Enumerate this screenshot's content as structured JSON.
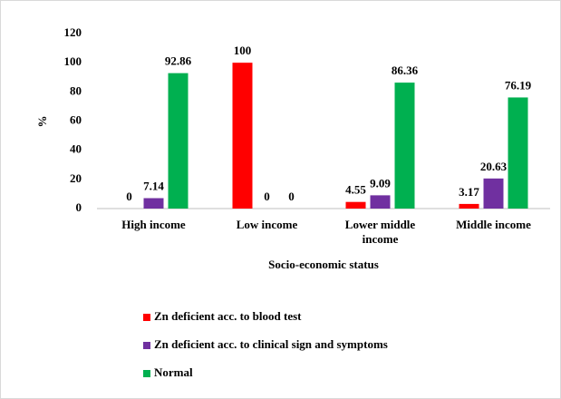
{
  "chart_data": {
    "type": "bar",
    "ylabel": "%",
    "xlabel": "Socio-economic status",
    "categories": [
      "High income",
      "Low income",
      "Lower middle income",
      "Middle income"
    ],
    "series": [
      {
        "name": "Zn deficient acc. to blood test",
        "color": "#ff0000",
        "values": [
          0,
          100,
          4.55,
          3.17
        ]
      },
      {
        "name": "Zn deficient acc. to clinical sign and symptoms",
        "color": "#7030a0",
        "values": [
          7.14,
          0,
          9.09,
          20.63
        ]
      },
      {
        "name": "Normal",
        "color": "#00b050",
        "values": [
          92.86,
          0,
          86.36,
          76.19
        ]
      }
    ],
    "ylim": [
      0,
      120
    ],
    "yticks": [
      0,
      20,
      40,
      60,
      80,
      100,
      120
    ],
    "grid": false,
    "legend": "bottom"
  }
}
